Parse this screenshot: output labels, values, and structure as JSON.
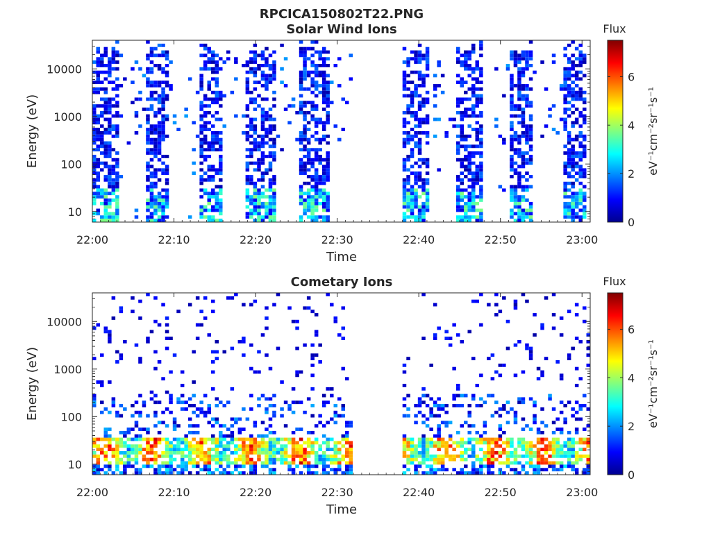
{
  "figure": {
    "title": "RPCICA150802T22.PNG"
  },
  "colors": {
    "colormap": [
      "#00008f",
      "#0000ff",
      "#0080ff",
      "#00ffff",
      "#80ff80",
      "#ffff00",
      "#ff8000",
      "#ff0000",
      "#800000"
    ],
    "axis": "#262626"
  },
  "chart_data": [
    {
      "type": "heatmap",
      "title": "Solar Wind Ions",
      "xlabel": "Time",
      "ylabel": "Energy (eV)",
      "x_ticks": [
        "22:00",
        "22:10",
        "22:20",
        "22:30",
        "22:40",
        "22:50",
        "23:00"
      ],
      "y_ticks": [
        "10",
        "100",
        "1000",
        "10000"
      ],
      "y_scale": "log",
      "y_range": [
        6,
        40000
      ],
      "x_range": [
        "22:00",
        "23:01"
      ],
      "colorbar": {
        "title": "Flux",
        "label": "eV⁻¹cm⁻²sr⁻¹s⁻¹",
        "ticks": [
          "0",
          "2",
          "4",
          "6"
        ],
        "range": [
          0,
          7.5
        ]
      },
      "bursts_minutes": [
        [
          0,
          3.2
        ],
        [
          6.5,
          9.5
        ],
        [
          13,
          16
        ],
        [
          19,
          22.5
        ],
        [
          25.5,
          29
        ],
        [
          38,
          41.5
        ],
        [
          44.5,
          48
        ],
        [
          51,
          54
        ],
        [
          57.5,
          60.5
        ]
      ],
      "scattered_minutes": [
        [
          3.2,
          6.5
        ],
        [
          9.5,
          13
        ],
        [
          16,
          19
        ],
        [
          22.5,
          25.5
        ],
        [
          29,
          32
        ],
        [
          41.5,
          44.5
        ],
        [
          48,
          51
        ],
        [
          54,
          57.5
        ]
      ],
      "gap_minutes": [
        32,
        38
      ],
      "dominant_level": "low (0–2) across 10–30000 eV; cyan/green at 6–30 eV"
    },
    {
      "type": "heatmap",
      "title": "Cometary Ions",
      "xlabel": "Time",
      "ylabel": "Energy (eV)",
      "x_ticks": [
        "22:00",
        "22:10",
        "22:20",
        "22:30",
        "22:40",
        "22:50",
        "23:00"
      ],
      "y_ticks": [
        "10",
        "100",
        "1000",
        "10000"
      ],
      "y_scale": "log",
      "y_range": [
        6,
        40000
      ],
      "x_range": [
        "22:00",
        "23:01"
      ],
      "colorbar": {
        "title": "Flux",
        "label": "eV⁻¹cm⁻²sr⁻¹s⁻¹",
        "ticks": [
          "0",
          "2",
          "4",
          "6"
        ],
        "range": [
          0,
          7.5
        ]
      },
      "hot_band_eV": [
        10,
        35
      ],
      "hot_band_peak_level": 6.5,
      "gap_minutes": [
        32,
        38
      ],
      "dominant_level": "low (0–1) scattered above 100 eV; yellow/orange/red patches at 10–35 eV"
    }
  ]
}
